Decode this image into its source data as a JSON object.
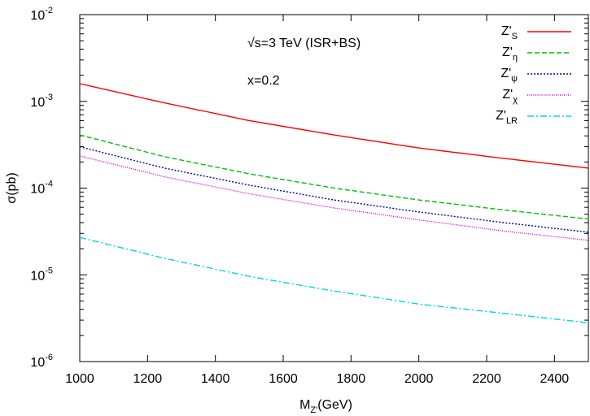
{
  "chart_data": {
    "type": "line",
    "xlabel": {
      "main": "M",
      "sub": "Z'",
      "unit": "(GeV)"
    },
    "ylabel": "σ(pb)",
    "xlim": [
      1000,
      2500
    ],
    "ylim": [
      1e-06,
      0.01
    ],
    "y_scale": "log",
    "grid": false,
    "legend_position": "top-right",
    "x_ticks": [
      "1000",
      "1200",
      "1400",
      "1600",
      "1800",
      "2000",
      "2200",
      "2400"
    ],
    "x_tick_values": [
      1000,
      1200,
      1400,
      1600,
      1800,
      2000,
      2200,
      2400
    ],
    "y_ticks": [
      {
        "base": "10",
        "exp": "-2",
        "value": 0.01
      },
      {
        "base": "10",
        "exp": "-3",
        "value": 0.001
      },
      {
        "base": "10",
        "exp": "-4",
        "value": 0.0001
      },
      {
        "base": "10",
        "exp": "-5",
        "value": 1e-05
      },
      {
        "base": "10",
        "exp": "-6",
        "value": 1e-06
      }
    ],
    "annotations": [
      "√s=3 TeV (ISR+BS)",
      "x=0.2"
    ],
    "x": [
      1000,
      1250,
      1500,
      1750,
      2000,
      2250,
      2500
    ],
    "series": [
      {
        "name": "Z'",
        "sub": "S",
        "color": "#ff0000",
        "dash": "none",
        "values": [
          0.0016,
          0.00096,
          0.0006,
          0.00041,
          0.00029,
          0.00022,
          0.00017
        ]
      },
      {
        "name": "Z'",
        "sub": "η",
        "color": "#00c000",
        "dash": "6,3",
        "values": [
          0.00041,
          0.00023,
          0.000146,
          0.0001,
          7.3e-05,
          5.6e-05,
          4.4e-05
        ]
      },
      {
        "name": "Z'",
        "sub": "ψ",
        "color": "#0000b0",
        "dash": "2,2",
        "values": [
          0.0003,
          0.00017,
          0.000108,
          7.3e-05,
          5.3e-05,
          4e-05,
          3.1e-05
        ]
      },
      {
        "name": "Z'",
        "sub": "χ",
        "color": "#d000d0",
        "dash": "1,1.5",
        "values": [
          0.000235,
          0.000135,
          8.6e-05,
          5.9e-05,
          4.3e-05,
          3.2e-05,
          2.5e-05
        ]
      },
      {
        "name": "Z'",
        "sub": "LR",
        "color": "#00d8d8",
        "dash": "8,3,2,3",
        "values": [
          2.7e-05,
          1.55e-05,
          9.6e-06,
          6.5e-06,
          4.6e-06,
          3.6e-06,
          2.8e-06
        ]
      }
    ]
  }
}
